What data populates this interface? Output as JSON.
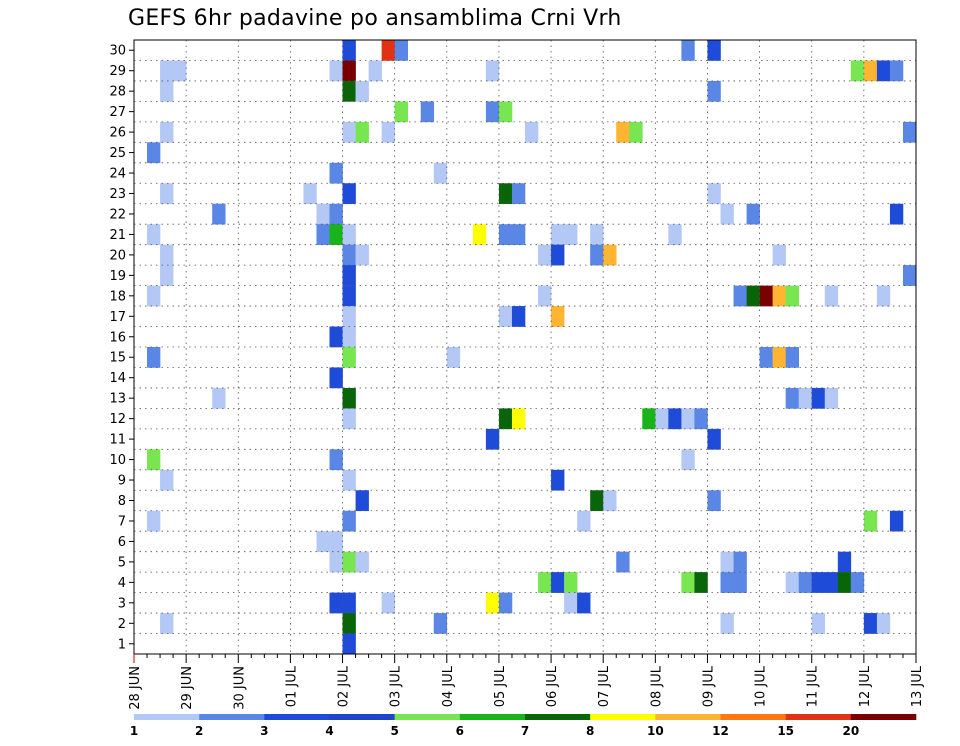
{
  "chart_data": {
    "type": "heatmap",
    "title": "GEFS 6hr padavine po ansamblima Crni Vrh",
    "xlabel": "",
    "ylabel": "",
    "x_tick_labels": [
      "28 JUN",
      "29 JUN",
      "30 JUN",
      "01 JUL",
      "02 JUL",
      "03 JUL",
      "04 JUL",
      "05 JUL",
      "06 JUL",
      "07 JUL",
      "08 JUL",
      "09 JUL",
      "10 JUL",
      "11 JUL",
      "12 JUL",
      "13 JUL"
    ],
    "y_tick_labels": [
      "1",
      "2",
      "3",
      "4",
      "5",
      "6",
      "7",
      "8",
      "9",
      "10",
      "11",
      "12",
      "13",
      "14",
      "15",
      "16",
      "17",
      "18",
      "19",
      "20",
      "21",
      "22",
      "23",
      "24",
      "25",
      "26",
      "27",
      "28",
      "29",
      "30"
    ],
    "x_steps": 60,
    "steps_per_day": 4,
    "grid": true,
    "colorbar": {
      "position": "bottom",
      "labels": [
        "1",
        "2",
        "3",
        "4",
        "5",
        "6",
        "7",
        "8",
        "10",
        "12",
        "15",
        "20"
      ],
      "colors": [
        "#b4c8f5",
        "#5a87e6",
        "#1e4bd7",
        "#1e46c8",
        "#78e650",
        "#19b419",
        "#0a640a",
        "#ffff00",
        "#ffb432",
        "#ff7814",
        "#e13214",
        "#780000"
      ]
    },
    "category_colors": {
      "1": "#b4c8f5",
      "2": "#5a87e6",
      "3": "#1e4bd7",
      "4": "#78e650",
      "5": "#19b419",
      "6": "#0a640a",
      "7": "#ffff00",
      "8": "#ffb432",
      "9": "#ff7814",
      "10": "#e13214",
      "11": "#780000"
    },
    "cells": [
      [
        16,
        30,
        3
      ],
      [
        19,
        30,
        10
      ],
      [
        20,
        30,
        2
      ],
      [
        42,
        30,
        2
      ],
      [
        44,
        30,
        3
      ],
      [
        2,
        29,
        1
      ],
      [
        3,
        29,
        1
      ],
      [
        15,
        29,
        1
      ],
      [
        16,
        29,
        11
      ],
      [
        18,
        29,
        1
      ],
      [
        27,
        29,
        1
      ],
      [
        55,
        29,
        4
      ],
      [
        56,
        29,
        8
      ],
      [
        57,
        29,
        3
      ],
      [
        58,
        29,
        2
      ],
      [
        2,
        28,
        1
      ],
      [
        16,
        28,
        6
      ],
      [
        17,
        28,
        1
      ],
      [
        44,
        28,
        2
      ],
      [
        20,
        27,
        4
      ],
      [
        22,
        27,
        2
      ],
      [
        27,
        27,
        2
      ],
      [
        28,
        27,
        4
      ],
      [
        2,
        26,
        1
      ],
      [
        16,
        26,
        1
      ],
      [
        17,
        26,
        4
      ],
      [
        19,
        26,
        1
      ],
      [
        30,
        26,
        1
      ],
      [
        37,
        26,
        8
      ],
      [
        38,
        26,
        4
      ],
      [
        59,
        26,
        2
      ],
      [
        1,
        25,
        2
      ],
      [
        15,
        24,
        2
      ],
      [
        23,
        24,
        1
      ],
      [
        2,
        23,
        1
      ],
      [
        13,
        23,
        1
      ],
      [
        16,
        23,
        3
      ],
      [
        28,
        23,
        6
      ],
      [
        29,
        23,
        2
      ],
      [
        44,
        23,
        1
      ],
      [
        6,
        22,
        2
      ],
      [
        14,
        22,
        1
      ],
      [
        15,
        22,
        2
      ],
      [
        45,
        22,
        1
      ],
      [
        47,
        22,
        2
      ],
      [
        58,
        22,
        3
      ],
      [
        1,
        21,
        1
      ],
      [
        14,
        21,
        2
      ],
      [
        15,
        21,
        5
      ],
      [
        16,
        21,
        1
      ],
      [
        26,
        21,
        7
      ],
      [
        28,
        21,
        2
      ],
      [
        29,
        21,
        2
      ],
      [
        32,
        21,
        1
      ],
      [
        33,
        21,
        1
      ],
      [
        35,
        21,
        1
      ],
      [
        41,
        21,
        1
      ],
      [
        2,
        20,
        1
      ],
      [
        16,
        20,
        2
      ],
      [
        17,
        20,
        1
      ],
      [
        31,
        20,
        1
      ],
      [
        32,
        20,
        3
      ],
      [
        35,
        20,
        2
      ],
      [
        36,
        20,
        8
      ],
      [
        49,
        20,
        1
      ],
      [
        2,
        19,
        1
      ],
      [
        16,
        19,
        3
      ],
      [
        59,
        19,
        2
      ],
      [
        1,
        18,
        1
      ],
      [
        16,
        18,
        3
      ],
      [
        31,
        18,
        1
      ],
      [
        46,
        18,
        2
      ],
      [
        47,
        18,
        6
      ],
      [
        48,
        18,
        11
      ],
      [
        49,
        18,
        8
      ],
      [
        50,
        18,
        4
      ],
      [
        53,
        18,
        1
      ],
      [
        57,
        18,
        1
      ],
      [
        16,
        17,
        1
      ],
      [
        28,
        17,
        1
      ],
      [
        29,
        17,
        3
      ],
      [
        32,
        17,
        8
      ],
      [
        15,
        16,
        3
      ],
      [
        16,
        16,
        1
      ],
      [
        1,
        15,
        2
      ],
      [
        16,
        15,
        4
      ],
      [
        24,
        15,
        1
      ],
      [
        48,
        15,
        2
      ],
      [
        49,
        15,
        8
      ],
      [
        50,
        15,
        2
      ],
      [
        15,
        14,
        3
      ],
      [
        6,
        13,
        1
      ],
      [
        16,
        13,
        6
      ],
      [
        50,
        13,
        2
      ],
      [
        51,
        13,
        1
      ],
      [
        52,
        13,
        3
      ],
      [
        53,
        13,
        1
      ],
      [
        16,
        12,
        1
      ],
      [
        28,
        12,
        6
      ],
      [
        29,
        12,
        7
      ],
      [
        39,
        12,
        5
      ],
      [
        40,
        12,
        1
      ],
      [
        41,
        12,
        3
      ],
      [
        42,
        12,
        1
      ],
      [
        43,
        12,
        2
      ],
      [
        27,
        11,
        3
      ],
      [
        44,
        11,
        3
      ],
      [
        1,
        10,
        4
      ],
      [
        15,
        10,
        2
      ],
      [
        42,
        10,
        1
      ],
      [
        2,
        9,
        1
      ],
      [
        16,
        9,
        1
      ],
      [
        32,
        9,
        3
      ],
      [
        17,
        8,
        3
      ],
      [
        35,
        8,
        6
      ],
      [
        36,
        8,
        1
      ],
      [
        44,
        8,
        2
      ],
      [
        1,
        7,
        1
      ],
      [
        16,
        7,
        2
      ],
      [
        34,
        7,
        1
      ],
      [
        56,
        7,
        4
      ],
      [
        58,
        7,
        3
      ],
      [
        14,
        6,
        1
      ],
      [
        15,
        6,
        1
      ],
      [
        15,
        5,
        1
      ],
      [
        16,
        5,
        4
      ],
      [
        17,
        5,
        1
      ],
      [
        37,
        5,
        2
      ],
      [
        45,
        5,
        1
      ],
      [
        46,
        5,
        2
      ],
      [
        54,
        5,
        3
      ],
      [
        31,
        4,
        4
      ],
      [
        32,
        4,
        3
      ],
      [
        33,
        4,
        4
      ],
      [
        42,
        4,
        4
      ],
      [
        43,
        4,
        6
      ],
      [
        45,
        4,
        2
      ],
      [
        46,
        4,
        2
      ],
      [
        50,
        4,
        1
      ],
      [
        51,
        4,
        2
      ],
      [
        52,
        4,
        3
      ],
      [
        53,
        4,
        3
      ],
      [
        54,
        4,
        6
      ],
      [
        55,
        4,
        2
      ],
      [
        15,
        3,
        3
      ],
      [
        16,
        3,
        3
      ],
      [
        19,
        3,
        1
      ],
      [
        27,
        3,
        7
      ],
      [
        28,
        3,
        2
      ],
      [
        33,
        3,
        1
      ],
      [
        34,
        3,
        3
      ],
      [
        2,
        2,
        1
      ],
      [
        16,
        2,
        6
      ],
      [
        23,
        2,
        2
      ],
      [
        45,
        2,
        1
      ],
      [
        52,
        2,
        1
      ],
      [
        56,
        2,
        3
      ],
      [
        57,
        2,
        1
      ],
      [
        16,
        1,
        3
      ]
    ]
  }
}
